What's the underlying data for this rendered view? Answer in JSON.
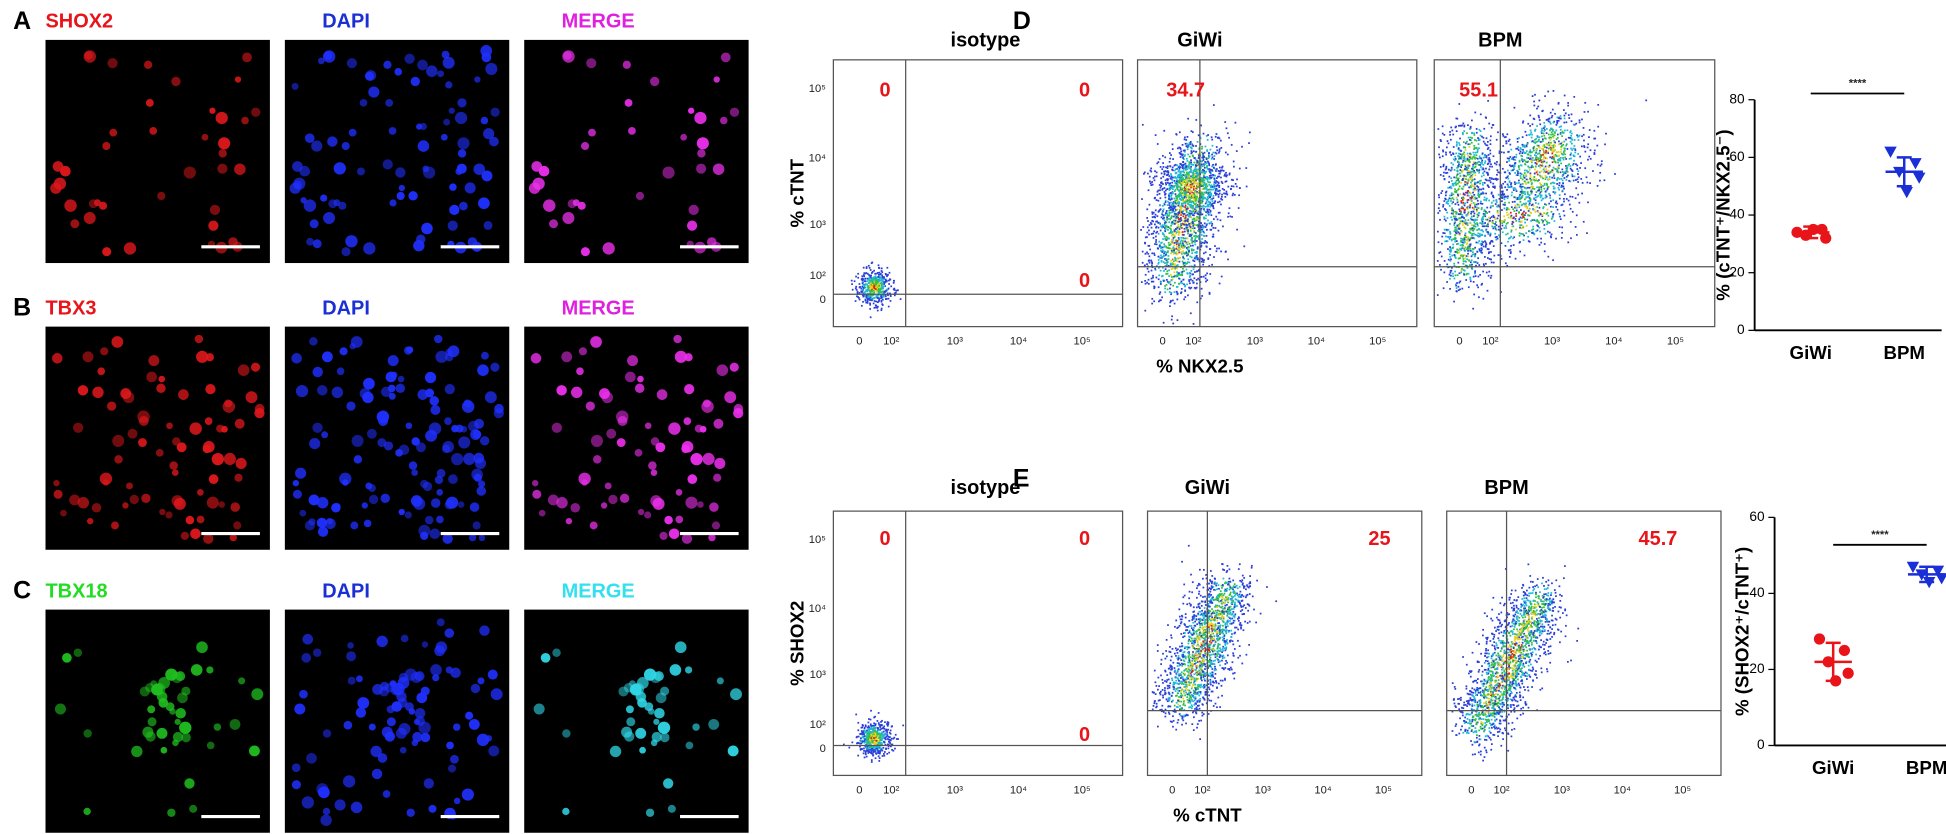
{
  "panels": [
    {
      "letter": "A",
      "titles": [
        "SHOX2",
        "DAPI",
        "MERGE"
      ]
    },
    {
      "letter": "B",
      "titles": [
        "TBX3",
        "DAPI",
        "MERGE"
      ]
    },
    {
      "letter": "C",
      "titles": [
        "TBX18",
        "DAPI",
        "MERGE"
      ]
    }
  ],
  "flow": [
    {
      "letter": "D",
      "titles": [
        "isotype",
        "GiWi",
        "BPM"
      ],
      "quadrants": [
        [
          0,
          0,
          0
        ],
        [
          34.7
        ],
        [
          55.1
        ]
      ],
      "y_label": "% cTNT",
      "x_label": "% NKX2.5",
      "y_ticks": [
        "10⁵",
        "10⁴",
        "10³",
        "10²",
        "0"
      ],
      "x_ticks": [
        "0",
        "10²",
        "10³",
        "10⁴",
        "10⁵"
      ]
    },
    {
      "letter": "E",
      "titles": [
        "isotype",
        "GiWi",
        "BPM"
      ],
      "quadrants": [
        [
          0,
          0,
          0
        ],
        [
          25
        ],
        [
          45.7
        ]
      ],
      "y_label": "% SHOX2",
      "x_label": "% cTNT",
      "y_ticks": [
        "10⁵",
        "10⁴",
        "10³",
        "10²",
        "0"
      ],
      "x_ticks": [
        "0",
        "10²",
        "10³",
        "10⁴",
        "10⁵"
      ]
    }
  ],
  "chart_data": [
    {
      "type": "dot",
      "y_label": "% (cTNT⁺/NKX2.5⁻)",
      "significance": "****",
      "ylim": [
        0,
        80
      ],
      "yticks": [
        0,
        20,
        40,
        60,
        80
      ],
      "series": [
        {
          "name": "GiWi",
          "color": "#e8141a",
          "values": [
            34,
            35,
            33,
            32,
            35
          ],
          "mean": 34,
          "error": 2
        },
        {
          "name": "BPM",
          "color": "#1a2fd6",
          "values": [
            62,
            58,
            55,
            53,
            48
          ],
          "mean": 55,
          "error": 5
        }
      ]
    },
    {
      "type": "dot",
      "y_label": "% (SHOX2⁺/cTNT⁺)",
      "significance": "****",
      "ylim": [
        0,
        60
      ],
      "yticks": [
        0,
        20,
        40,
        60
      ],
      "series": [
        {
          "name": "GiWi",
          "color": "#e8141a",
          "values": [
            28,
            25,
            22,
            19,
            17
          ],
          "mean": 22,
          "error": 5
        },
        {
          "name": "BPM",
          "color": "#1a2fd6",
          "values": [
            47,
            46,
            45,
            44,
            43
          ],
          "mean": 45,
          "error": 2
        }
      ]
    }
  ]
}
